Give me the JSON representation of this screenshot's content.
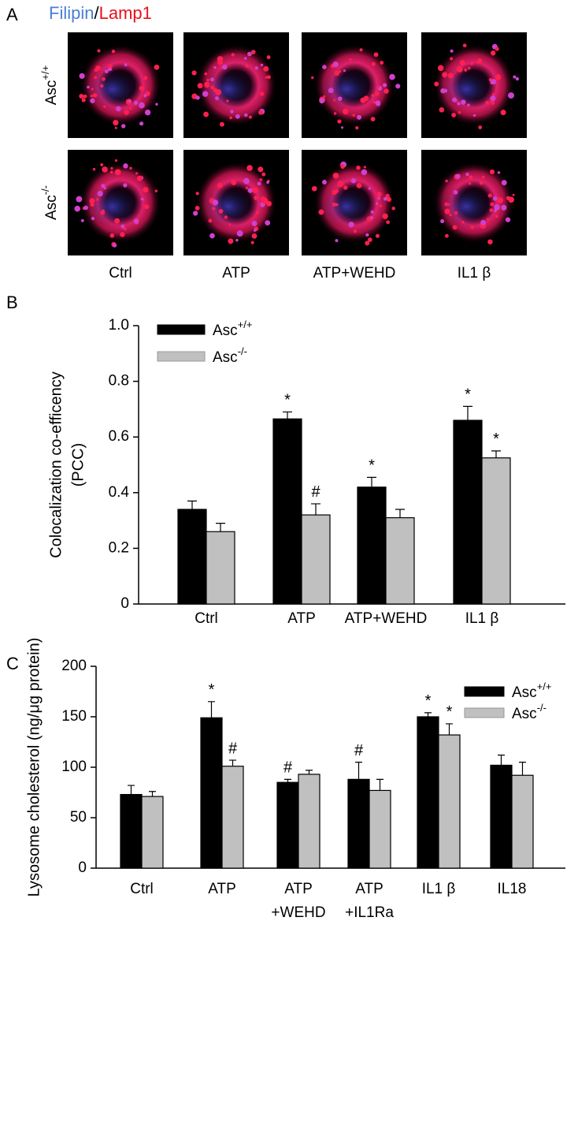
{
  "panel_a": {
    "panel": "A",
    "stain_1": "Filipin",
    "separator": "/",
    "stain_2": "Lamp1",
    "rows": [
      "Asc+/+",
      "Asc-/-"
    ],
    "columns": [
      "Ctrl",
      "ATP",
      "ATP+WEHD",
      "IL1 β"
    ]
  },
  "chart_data": [
    {
      "type": "bar",
      "panel": "B",
      "y_label": [
        "Colocalization co-efficency",
        "(PCC)"
      ],
      "categories": [
        "Ctrl",
        "ATP",
        "ATP+WEHD",
        "IL1 β"
      ],
      "series": [
        {
          "name": "Asc+/+",
          "color": "#000000",
          "values": [
            0.34,
            0.665,
            0.42,
            0.66
          ],
          "errors": [
            0.03,
            0.025,
            0.035,
            0.05
          ],
          "annotations": [
            null,
            "*",
            "*",
            "*"
          ]
        },
        {
          "name": "Asc-/-",
          "color": "#c0c0c0",
          "values": [
            0.26,
            0.32,
            0.31,
            0.525
          ],
          "errors": [
            0.03,
            0.04,
            0.03,
            0.025
          ],
          "annotations": [
            null,
            "#",
            null,
            "*"
          ]
        }
      ],
      "ylim": [
        0,
        1
      ],
      "yticks": [
        0,
        0.2,
        0.4,
        0.6,
        0.8,
        {
          "value": 1,
          "label": "1.0"
        }
      ],
      "legend": "upper left"
    },
    {
      "type": "bar",
      "panel": "C",
      "y_label": [
        "Lysosome cholesterol (ng/μg protein)"
      ],
      "categories": [
        "Ctrl",
        "ATP",
        [
          "ATP",
          "+WEHD"
        ],
        [
          "ATP",
          "+IL1Ra"
        ],
        "IL1 β",
        "IL18"
      ],
      "series": [
        {
          "name": "Asc+/+",
          "color": "#000000",
          "values": [
            73,
            149,
            85,
            88,
            150,
            102
          ],
          "errors": [
            9,
            16,
            3,
            17,
            4,
            10
          ],
          "annotations": [
            null,
            "*",
            "#",
            "#",
            "*",
            null
          ]
        },
        {
          "name": "Asc-/-",
          "color": "#c0c0c0",
          "values": [
            71,
            101,
            93,
            77,
            132,
            92
          ],
          "errors": [
            5,
            6,
            4,
            11,
            11,
            13
          ],
          "annotations": [
            null,
            "#",
            null,
            null,
            "*",
            null
          ]
        }
      ],
      "ylim": [
        0,
        200
      ],
      "yticks": [
        0,
        50,
        100,
        150,
        200
      ],
      "legend": "upper right"
    }
  ]
}
